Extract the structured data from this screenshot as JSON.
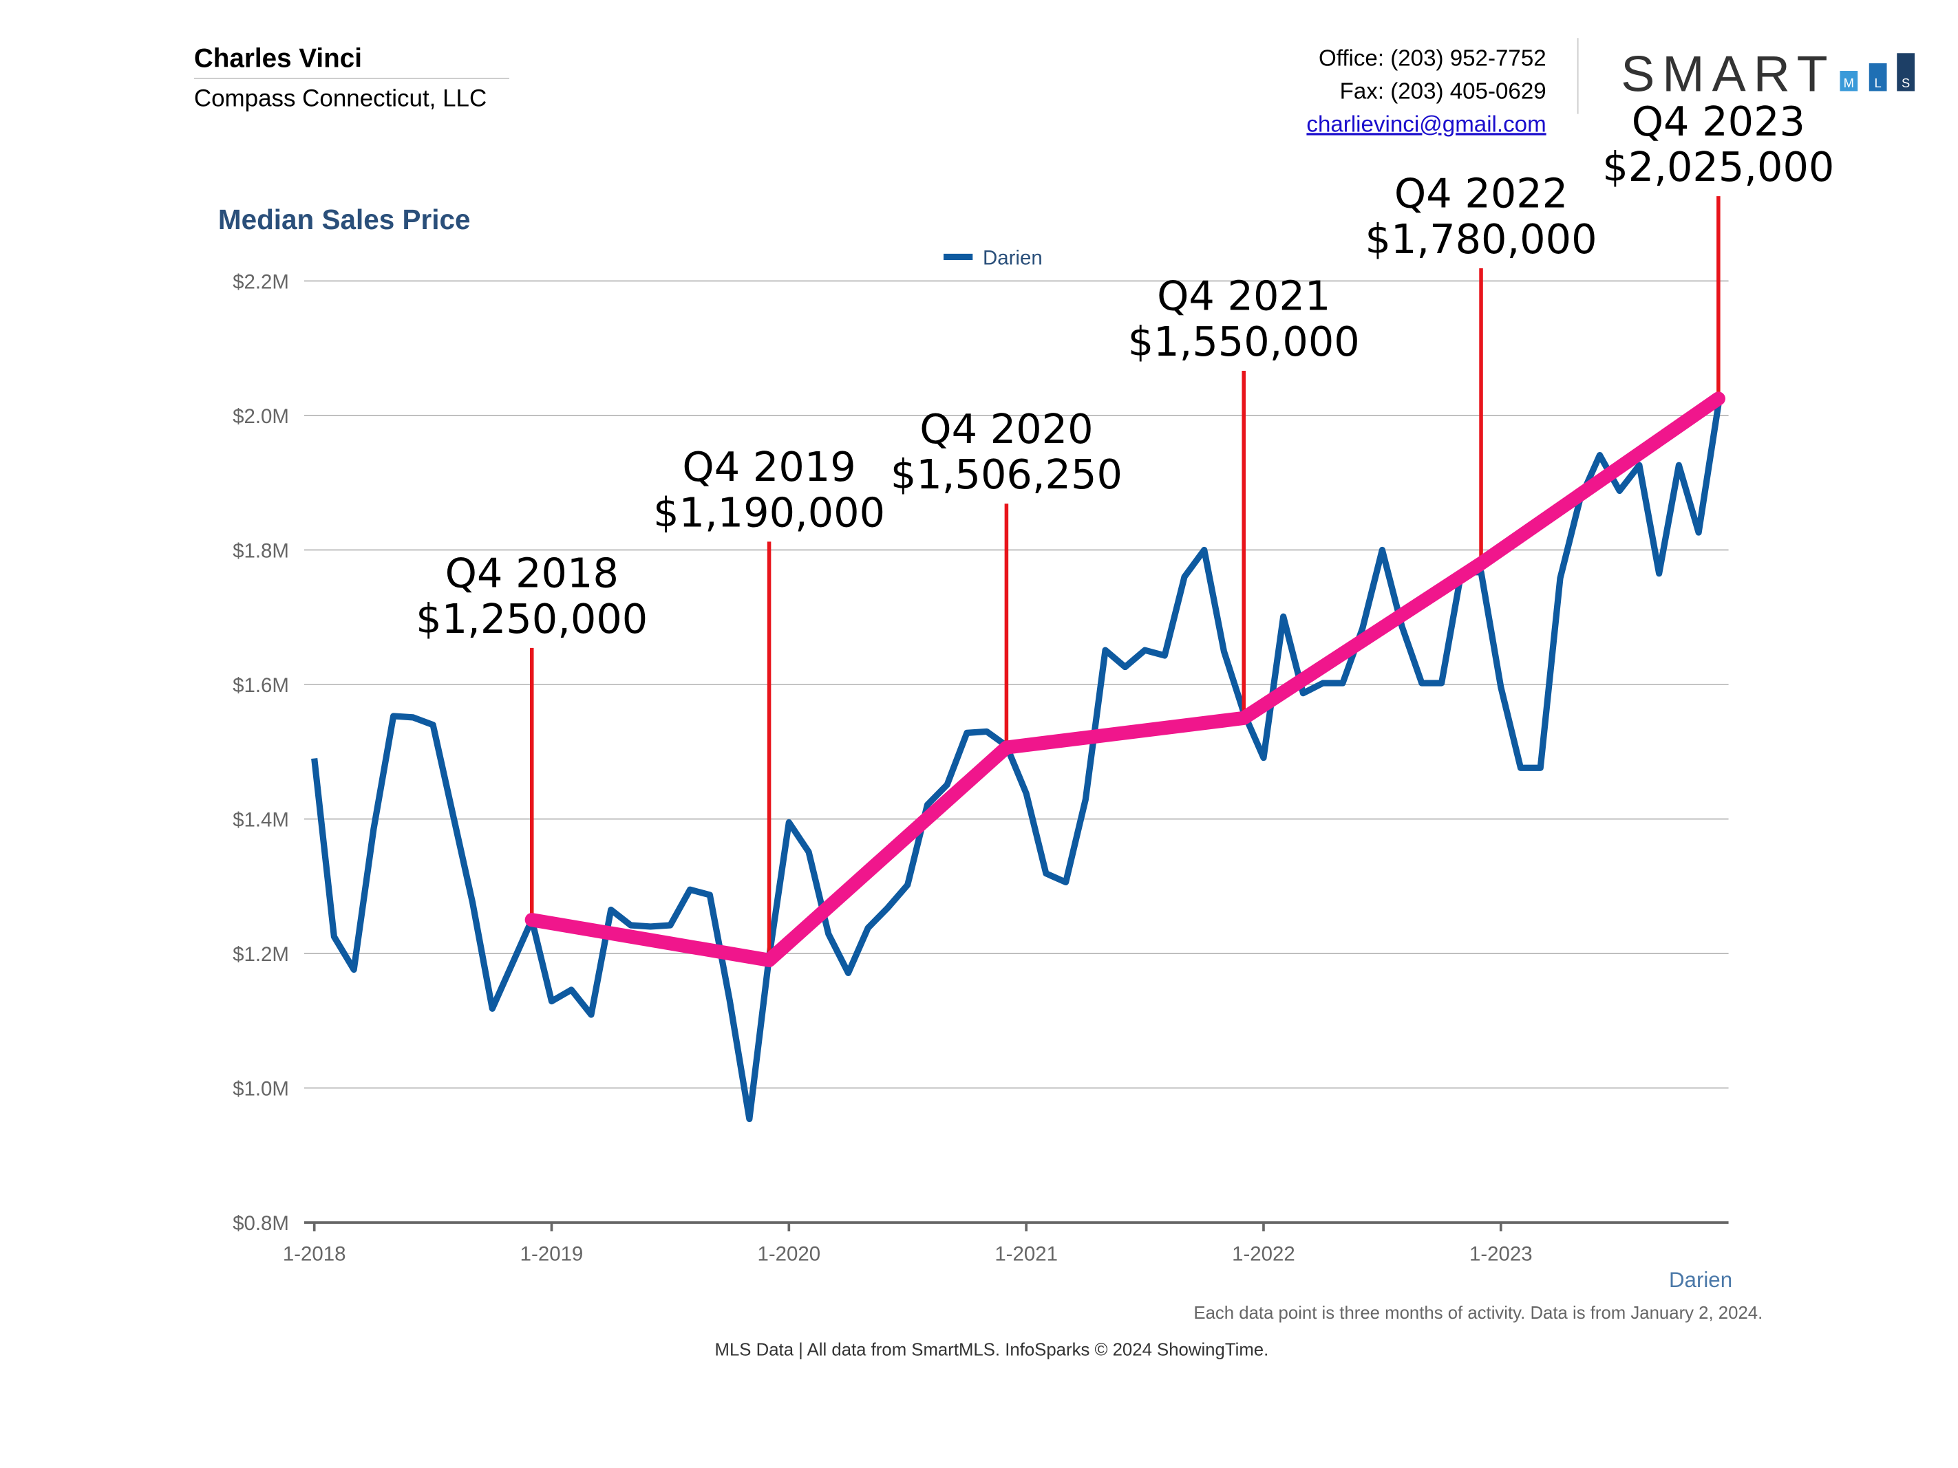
{
  "header": {
    "name": "Charles Vinci",
    "company": "Compass Connecticut, LLC",
    "office": "Office: (203) 952-7752",
    "fax": "Fax: (203) 405-0629",
    "email": "charlievinci@gmail.com",
    "logo": "SMART",
    "logo_sub": [
      "M",
      "L",
      "S"
    ]
  },
  "chart_data": {
    "type": "line",
    "title": "Median Sales Price",
    "x_label": "Darien",
    "note": "Each data point is three months of activity. Data is from January 2, 2024.",
    "footer": "MLS Data | All data from SmartMLS. InfoSparks © 2024 ShowingTime.",
    "x": [
      "1-2018",
      "2-2018",
      "3-2018",
      "4-2018",
      "5-2018",
      "6-2018",
      "7-2018",
      "8-2018",
      "9-2018",
      "10-2018",
      "11-2018",
      "12-2018",
      "1-2019",
      "2-2019",
      "3-2019",
      "4-2019",
      "5-2019",
      "6-2019",
      "7-2019",
      "8-2019",
      "9-2019",
      "10-2019",
      "11-2019",
      "12-2019",
      "1-2020",
      "2-2020",
      "3-2020",
      "4-2020",
      "5-2020",
      "6-2020",
      "7-2020",
      "8-2020",
      "9-2020",
      "10-2020",
      "11-2020",
      "12-2020",
      "1-2021",
      "2-2021",
      "3-2021",
      "4-2021",
      "5-2021",
      "6-2021",
      "7-2021",
      "8-2021",
      "9-2021",
      "10-2021",
      "11-2021",
      "12-2021",
      "1-2022",
      "2-2022",
      "3-2022",
      "4-2022",
      "5-2022",
      "6-2022",
      "7-2022",
      "8-2022",
      "9-2022",
      "10-2022",
      "11-2022",
      "12-2022",
      "1-2023",
      "2-2023",
      "3-2023",
      "4-2023",
      "5-2023",
      "6-2023",
      "7-2023",
      "8-2023",
      "9-2023",
      "10-2023",
      "11-2023",
      "12-2023"
    ],
    "series": [
      {
        "name": "Darien",
        "color": "#0e5aa0",
        "values": [
          1490000,
          1225000,
          1176000,
          1385000,
          1553000,
          1551000,
          1540000,
          1408000,
          1276000,
          1118000,
          1184000,
          1250000,
          1129000,
          1146000,
          1109000,
          1265000,
          1242000,
          1240000,
          1242000,
          1295000,
          1287000,
          1131000,
          954000,
          1195000,
          1395000,
          1351000,
          1229000,
          1171000,
          1238000,
          1268000,
          1302000,
          1421000,
          1451000,
          1528000,
          1530000,
          1509000,
          1438000,
          1319000,
          1306000,
          1429000,
          1651000,
          1626000,
          1651000,
          1643000,
          1760000,
          1800000,
          1649000,
          1558000,
          1491000,
          1701000,
          1587000,
          1602000,
          1602000,
          1683000,
          1800000,
          1686000,
          1602000,
          1602000,
          1767000,
          1767000,
          1596000,
          1476000,
          1476000,
          1758000,
          1875000,
          1941000,
          1888000,
          1926000,
          1765000,
          1926000,
          1826000,
          2016000
        ]
      }
    ],
    "trend": {
      "color": "#f0168c",
      "line_color": "#e8141b",
      "x": [
        "12-2018",
        "12-2019",
        "12-2020",
        "12-2021",
        "12-2022",
        "12-2023"
      ],
      "labels": [
        "Q4 2018",
        "Q4 2019",
        "Q4 2020",
        "Q4 2021",
        "Q4 2022",
        "Q4 2023"
      ],
      "values": [
        1250000,
        1190000,
        1506250,
        1550000,
        1780000,
        2025000
      ],
      "value_labels": [
        "$1,250,000",
        "$1,190,000",
        "$1,506,250",
        "$1,550,000",
        "$1,780,000",
        "$2,025,000"
      ]
    },
    "ylim": [
      800000,
      2200000
    ],
    "yticks": [
      {
        "value": 800000,
        "label": "$0.8M"
      },
      {
        "value": 1000000,
        "label": "$1.0M"
      },
      {
        "value": 1200000,
        "label": "$1.2M"
      },
      {
        "value": 1400000,
        "label": "$1.4M"
      },
      {
        "value": 1600000,
        "label": "$1.6M"
      },
      {
        "value": 1800000,
        "label": "$1.8M"
      },
      {
        "value": 2000000,
        "label": "$2.0M"
      },
      {
        "value": 2200000,
        "label": "$2.2M"
      }
    ],
    "xticks": [
      "1-2018",
      "1-2019",
      "1-2020",
      "1-2021",
      "1-2022",
      "1-2023"
    ],
    "grid": true
  }
}
